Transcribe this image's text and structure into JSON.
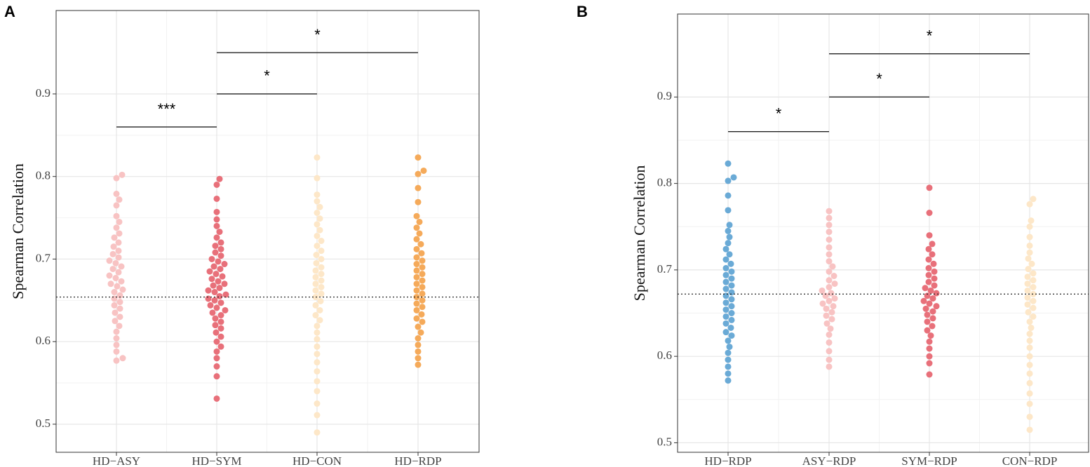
{
  "chart_data": [
    {
      "type": "beeswarm",
      "panel_label": "A",
      "ylabel": "Spearman Correlation",
      "categories": [
        "HD−ASY",
        "HD−SYM",
        "HD−CON",
        "HD−RDP"
      ],
      "colors": [
        "#f8c3c3",
        "#e8707a",
        "#fde7c8",
        "#f5aa5a"
      ],
      "values": [
        [
          0.802,
          0.798,
          0.779,
          0.772,
          0.765,
          0.752,
          0.745,
          0.738,
          0.731,
          0.726,
          0.72,
          0.715,
          0.71,
          0.706,
          0.702,
          0.698,
          0.695,
          0.691,
          0.688,
          0.684,
          0.68,
          0.677,
          0.673,
          0.67,
          0.667,
          0.663,
          0.66,
          0.656,
          0.652,
          0.648,
          0.644,
          0.64,
          0.635,
          0.63,
          0.625,
          0.619,
          0.612,
          0.604,
          0.596,
          0.588,
          0.58,
          0.577
        ],
        [
          0.797,
          0.79,
          0.773,
          0.757,
          0.748,
          0.74,
          0.733,
          0.726,
          0.72,
          0.716,
          0.712,
          0.708,
          0.704,
          0.7,
          0.697,
          0.694,
          0.691,
          0.688,
          0.685,
          0.682,
          0.679,
          0.676,
          0.673,
          0.67,
          0.668,
          0.665,
          0.662,
          0.66,
          0.657,
          0.655,
          0.652,
          0.65,
          0.647,
          0.644,
          0.641,
          0.638,
          0.635,
          0.632,
          0.628,
          0.624,
          0.62,
          0.616,
          0.611,
          0.606,
          0.6,
          0.594,
          0.588,
          0.58,
          0.57,
          0.558,
          0.531
        ],
        [
          0.823,
          0.798,
          0.778,
          0.77,
          0.763,
          0.756,
          0.749,
          0.742,
          0.735,
          0.728,
          0.722,
          0.716,
          0.71,
          0.705,
          0.7,
          0.695,
          0.69,
          0.686,
          0.682,
          0.678,
          0.674,
          0.67,
          0.666,
          0.662,
          0.658,
          0.654,
          0.649,
          0.644,
          0.638,
          0.632,
          0.626,
          0.619,
          0.611,
          0.603,
          0.594,
          0.585,
          0.575,
          0.564,
          0.552,
          0.54,
          0.525,
          0.511,
          0.49
        ],
        [
          0.823,
          0.807,
          0.803,
          0.786,
          0.769,
          0.752,
          0.745,
          0.738,
          0.731,
          0.724,
          0.718,
          0.712,
          0.707,
          0.702,
          0.698,
          0.694,
          0.69,
          0.686,
          0.682,
          0.678,
          0.674,
          0.67,
          0.666,
          0.662,
          0.658,
          0.654,
          0.65,
          0.646,
          0.642,
          0.638,
          0.633,
          0.628,
          0.624,
          0.618,
          0.611,
          0.604,
          0.596,
          0.588,
          0.58,
          0.572
        ]
      ],
      "ylim": [
        0.466,
        1.001
      ],
      "yticks": [
        0.5,
        0.6,
        0.7,
        0.8,
        0.9
      ],
      "grid": true,
      "reference_line": 0.654,
      "brackets": [
        {
          "label": "***",
          "from": 0,
          "to": 1,
          "y": 0.86
        },
        {
          "label": "*",
          "from": 1,
          "to": 2,
          "y": 0.9
        },
        {
          "label": "*",
          "from": 1,
          "to": 3,
          "y": 0.95
        }
      ]
    },
    {
      "type": "beeswarm",
      "panel_label": "B",
      "ylabel": "Spearman Correlation",
      "categories": [
        "HD−RDP",
        "ASY−RDP",
        "SYM−RDP",
        "CON−RDP"
      ],
      "colors": [
        "#6aaad6",
        "#f8c3c3",
        "#e8707a",
        "#fde7c8"
      ],
      "values": [
        [
          0.823,
          0.807,
          0.803,
          0.786,
          0.769,
          0.752,
          0.745,
          0.738,
          0.731,
          0.724,
          0.718,
          0.712,
          0.707,
          0.702,
          0.698,
          0.694,
          0.69,
          0.686,
          0.682,
          0.678,
          0.674,
          0.67,
          0.666,
          0.662,
          0.658,
          0.654,
          0.65,
          0.646,
          0.642,
          0.638,
          0.633,
          0.628,
          0.624,
          0.618,
          0.611,
          0.604,
          0.596,
          0.588,
          0.58,
          0.572
        ],
        [
          0.768,
          0.76,
          0.752,
          0.744,
          0.735,
          0.726,
          0.718,
          0.71,
          0.704,
          0.698,
          0.693,
          0.688,
          0.684,
          0.68,
          0.676,
          0.673,
          0.67,
          0.667,
          0.664,
          0.661,
          0.658,
          0.655,
          0.651,
          0.647,
          0.643,
          0.638,
          0.632,
          0.625,
          0.616,
          0.606,
          0.596,
          0.588
        ],
        [
          0.795,
          0.766,
          0.74,
          0.73,
          0.724,
          0.718,
          0.712,
          0.707,
          0.702,
          0.698,
          0.694,
          0.69,
          0.686,
          0.682,
          0.679,
          0.676,
          0.673,
          0.67,
          0.667,
          0.664,
          0.661,
          0.658,
          0.655,
          0.652,
          0.648,
          0.644,
          0.64,
          0.635,
          0.63,
          0.624,
          0.617,
          0.609,
          0.6,
          0.592,
          0.579
        ],
        [
          0.782,
          0.776,
          0.757,
          0.75,
          0.738,
          0.728,
          0.72,
          0.713,
          0.707,
          0.701,
          0.696,
          0.692,
          0.688,
          0.684,
          0.68,
          0.676,
          0.672,
          0.668,
          0.664,
          0.66,
          0.656,
          0.651,
          0.646,
          0.64,
          0.633,
          0.626,
          0.618,
          0.61,
          0.6,
          0.59,
          0.58,
          0.569,
          0.557,
          0.545,
          0.53,
          0.515
        ]
      ],
      "ylim": [
        0.489,
        0.996
      ],
      "yticks": [
        0.5,
        0.6,
        0.7,
        0.8,
        0.9
      ],
      "grid": true,
      "reference_line": 0.672,
      "brackets": [
        {
          "label": "*",
          "from": 0,
          "to": 1,
          "y": 0.86
        },
        {
          "label": "*",
          "from": 1,
          "to": 2,
          "y": 0.9
        },
        {
          "label": "*",
          "from": 1,
          "to": 3,
          "y": 0.95
        }
      ]
    }
  ]
}
